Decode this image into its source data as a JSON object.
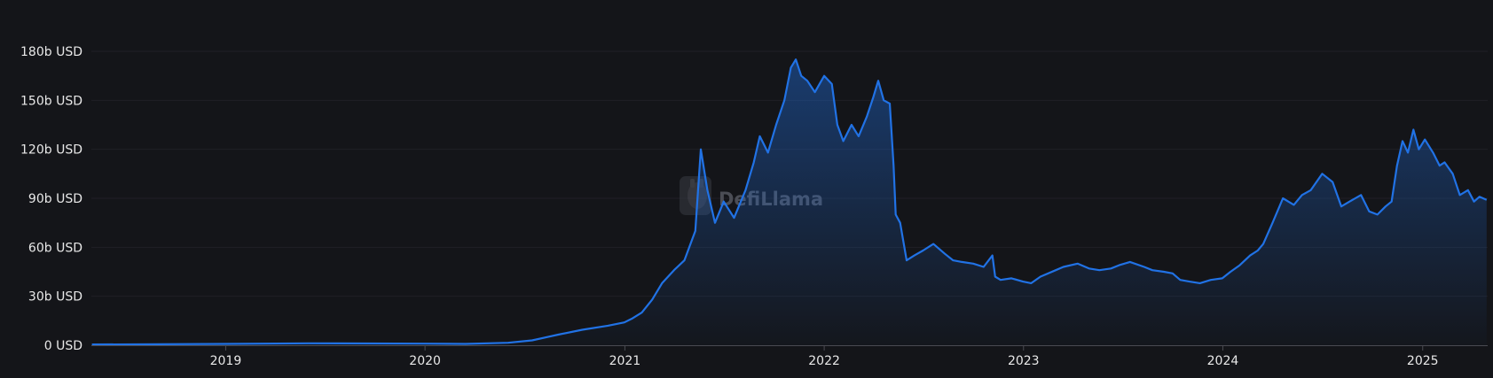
{
  "chart_data": {
    "type": "area",
    "title": "",
    "xlabel": "",
    "ylabel": "",
    "unit": "USD",
    "ylim": [
      0,
      180
    ],
    "yticks": [
      {
        "value": 0,
        "label": "0 USD"
      },
      {
        "value": 30,
        "label": "30b USD"
      },
      {
        "value": 60,
        "label": "60b USD"
      },
      {
        "value": 90,
        "label": "90b USD"
      },
      {
        "value": 120,
        "label": "120b USD"
      },
      {
        "value": 150,
        "label": "150b USD"
      },
      {
        "value": 180,
        "label": "180b USD"
      }
    ],
    "xlim": [
      "2018-04-30",
      "2025-04-30"
    ],
    "xticks": [
      {
        "value": "2019-01-01",
        "label": "2019"
      },
      {
        "value": "2020-01-01",
        "label": "2020"
      },
      {
        "value": "2021-01-01",
        "label": "2021"
      },
      {
        "value": "2022-01-01",
        "label": "2022"
      },
      {
        "value": "2023-01-01",
        "label": "2023"
      },
      {
        "value": "2024-01-01",
        "label": "2024"
      },
      {
        "value": "2025-01-01",
        "label": "2025"
      }
    ],
    "grid": true,
    "legend": "none",
    "line_color": "#2172e5",
    "fill_color": "#2172e5",
    "series": [
      {
        "x": [
          "2018-05-01",
          "2018-09-01",
          "2019-01-01",
          "2019-06-01",
          "2020-01-01",
          "2020-03-15",
          "2020-06-01",
          "2020-07-15",
          "2020-09-01",
          "2020-10-15",
          "2020-12-01",
          "2020-12-31",
          "2021-01-15",
          "2021-02-01",
          "2021-02-20",
          "2021-03-10",
          "2021-04-01",
          "2021-04-20",
          "2021-05-10",
          "2021-05-20",
          "2021-06-01",
          "2021-06-15",
          "2021-07-01",
          "2021-07-20",
          "2021-08-10",
          "2021-08-25",
          "2021-09-05",
          "2021-09-20",
          "2021-10-05",
          "2021-10-20",
          "2021-11-01",
          "2021-11-10",
          "2021-11-20",
          "2021-12-01",
          "2021-12-15",
          "2022-01-01",
          "2022-01-15",
          "2022-01-25",
          "2022-02-05",
          "2022-02-20",
          "2022-03-05",
          "2022-03-20",
          "2022-04-01",
          "2022-04-10",
          "2022-04-20",
          "2022-05-01",
          "2022-05-08",
          "2022-05-12",
          "2022-05-20",
          "2022-06-01",
          "2022-06-15",
          "2022-07-01",
          "2022-07-20",
          "2022-08-10",
          "2022-08-25",
          "2022-09-10",
          "2022-10-01",
          "2022-10-20",
          "2022-11-05",
          "2022-11-10",
          "2022-11-20",
          "2022-12-10",
          "2022-12-31",
          "2023-01-15",
          "2023-02-01",
          "2023-03-01",
          "2023-03-15",
          "2023-04-10",
          "2023-05-01",
          "2023-05-20",
          "2023-06-10",
          "2023-06-25",
          "2023-07-15",
          "2023-08-10",
          "2023-08-25",
          "2023-09-15",
          "2023-10-01",
          "2023-10-15",
          "2023-11-01",
          "2023-11-20",
          "2023-12-10",
          "2023-12-31",
          "2024-01-15",
          "2024-02-01",
          "2024-02-20",
          "2024-03-05",
          "2024-03-15",
          "2024-04-01",
          "2024-04-20",
          "2024-05-10",
          "2024-05-25",
          "2024-06-10",
          "2024-07-01",
          "2024-07-20",
          "2024-08-05",
          "2024-08-20",
          "2024-09-10",
          "2024-09-25",
          "2024-10-10",
          "2024-10-25",
          "2024-11-05",
          "2024-11-15",
          "2024-11-25",
          "2024-12-05",
          "2024-12-15",
          "2024-12-25",
          "2025-01-05",
          "2025-01-20",
          "2025-02-01",
          "2025-02-10",
          "2025-02-25",
          "2025-03-10",
          "2025-03-25",
          "2025-04-05",
          "2025-04-15",
          "2025-04-28"
        ],
        "y": [
          0.5,
          0.6,
          0.8,
          1.2,
          1.0,
          0.8,
          1.5,
          3.0,
          6.5,
          9.5,
          12.0,
          14.0,
          16.5,
          20.0,
          28.0,
          38.0,
          46.0,
          52.0,
          70.0,
          120.0,
          95.0,
          75.0,
          88.0,
          78.0,
          95.0,
          112.0,
          128.0,
          118.0,
          135.0,
          150.0,
          170.0,
          175.0,
          165.0,
          162.0,
          155.0,
          165.0,
          160.0,
          135.0,
          125.0,
          135.0,
          128.0,
          140.0,
          152.0,
          162.0,
          150.0,
          148.0,
          110.0,
          80.0,
          75.0,
          52.0,
          55.0,
          58.0,
          62.0,
          56.0,
          52.0,
          51.0,
          50.0,
          48.0,
          55.0,
          42.0,
          40.0,
          41.0,
          39.0,
          38.0,
          42.0,
          46.0,
          48.0,
          50.0,
          47.0,
          46.0,
          47.0,
          49.0,
          51.0,
          48.0,
          46.0,
          45.0,
          44.0,
          40.0,
          39.0,
          38.0,
          40.0,
          41.0,
          45.0,
          49.0,
          55.0,
          58.0,
          62.0,
          75.0,
          90.0,
          86.0,
          92.0,
          95.0,
          105.0,
          100.0,
          85.0,
          88.0,
          92.0,
          82.0,
          80.0,
          85.0,
          88.0,
          110.0,
          125.0,
          118.0,
          132.0,
          120.0,
          126.0,
          118.0,
          110.0,
          112.0,
          105.0,
          92.0,
          95.0,
          88.0,
          91.0,
          89.0
        ]
      }
    ],
    "watermark": "DefiLlama"
  }
}
